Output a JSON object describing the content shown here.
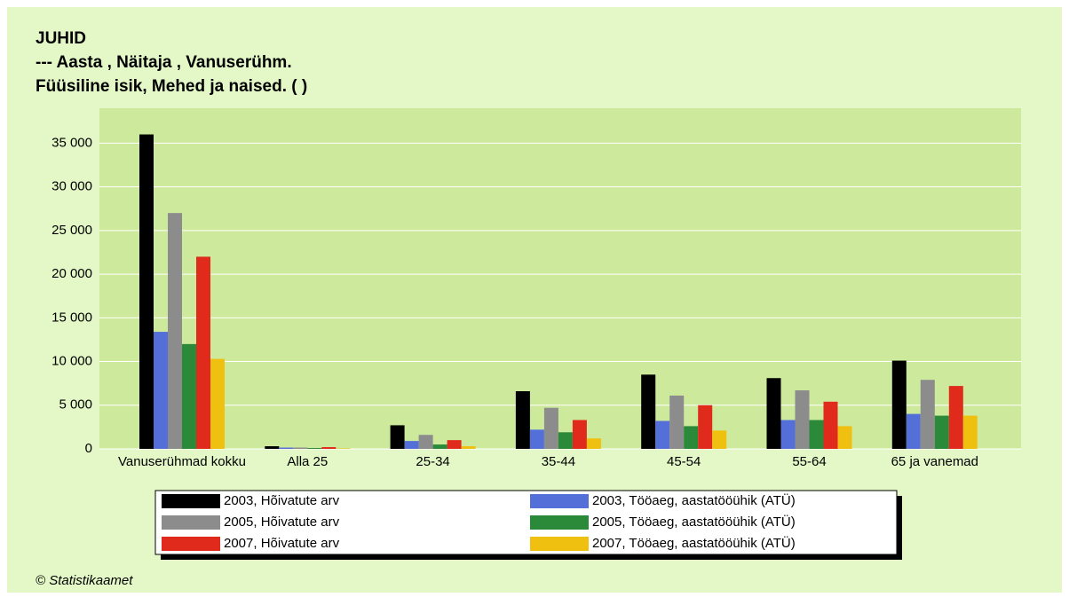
{
  "chart_data": {
    "type": "bar",
    "title": "JUHID",
    "subtitle": [
      "--- Aasta , Näitaja , Vanuserühm.",
      "Füüsiline isik, Mehed ja naised. ( )"
    ],
    "source": "© Statistikaamet",
    "categories": [
      "Vanuserühmad kokku",
      "Alla 25",
      "25-34",
      "35-44",
      "45-54",
      "55-64",
      "65 ja vanemad"
    ],
    "series": [
      {
        "name": "2003, Hõivatute arv",
        "color": "#000000",
        "values": [
          36000,
          300,
          2700,
          6600,
          8500,
          8100,
          10100
        ]
      },
      {
        "name": "2003, Tööaeg, aastatööühik (ATÜ)",
        "color": "#5470d8",
        "values": [
          13400,
          150,
          900,
          2200,
          3200,
          3300,
          4000
        ]
      },
      {
        "name": "2005, Hõivatute arv",
        "color": "#8c8c8c",
        "values": [
          27000,
          150,
          1600,
          4700,
          6100,
          6700,
          7900
        ]
      },
      {
        "name": "2005, Tööaeg, aastatööühik (ATÜ)",
        "color": "#2a8a3a",
        "values": [
          12000,
          100,
          500,
          1900,
          2600,
          3300,
          3800
        ]
      },
      {
        "name": "2007, Hõivatute arv",
        "color": "#e02a1c",
        "values": [
          22000,
          200,
          1000,
          3300,
          5000,
          5400,
          7200
        ]
      },
      {
        "name": "2007, Tööaeg, aastatööühik (ATÜ)",
        "color": "#f0c010",
        "values": [
          10300,
          50,
          300,
          1200,
          2100,
          2600,
          3800
        ]
      }
    ],
    "ylim": [
      0,
      39000
    ],
    "yticks": [
      0,
      {
        "value": 5000,
        "label": "5 000"
      },
      {
        "value": 10000,
        "label": "10 000"
      },
      {
        "value": 15000,
        "label": "15 000"
      },
      {
        "value": 20000,
        "label": "20 000"
      },
      {
        "value": 25000,
        "label": "25 000"
      },
      {
        "value": 30000,
        "label": "30 000"
      },
      {
        "value": 35000,
        "label": "35 000"
      }
    ],
    "grid": true
  }
}
